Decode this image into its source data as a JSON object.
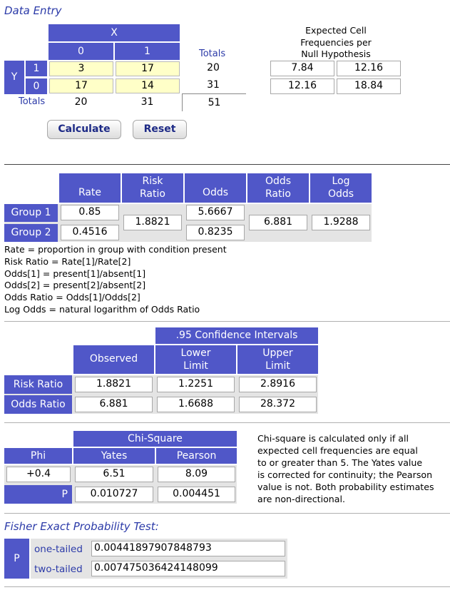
{
  "data_entry": {
    "title": "Data Entry",
    "x_header": "X",
    "x_col_0": "0",
    "x_col_1": "1",
    "totals_col_label": "Totals",
    "y_label": "Y",
    "y_row_1": "1",
    "y_row_0": "0",
    "totals_row_label": "Totals",
    "cells": {
      "r1c0": "3",
      "r1c1": "17",
      "r0c0": "17",
      "r0c1": "14"
    },
    "row_totals": {
      "r1": "20",
      "r0": "31"
    },
    "col_totals": {
      "c0": "20",
      "c1": "31"
    },
    "grand_total": "51",
    "expected_title_1": "Expected Cell",
    "expected_title_2": "Frequencies per",
    "expected_title_3": "Null Hypothesis",
    "expected": {
      "r1c0": "7.84",
      "r1c1": "12.16",
      "r0c0": "12.16",
      "r0c1": "18.84"
    },
    "calculate_label": "Calculate",
    "reset_label": "Reset"
  },
  "rates": {
    "col_rate": "Rate",
    "col_risk_1": "Risk",
    "col_risk_2": "Ratio",
    "col_odds": "Odds",
    "col_oddsratio_1": "Odds",
    "col_oddsratio_2": "Ratio",
    "col_log_1": "Log",
    "col_log_2": "Odds",
    "group1_label": "Group 1",
    "group2_label": "Group 2",
    "group1_rate": "0.85",
    "group2_rate": "0.4516",
    "risk_ratio": "1.8821",
    "group1_odds": "5.6667",
    "group2_odds": "0.8235",
    "odds_ratio": "6.881",
    "log_odds": "1.9288",
    "notes": [
      "Rate = proportion in group with condition present",
      "Risk Ratio = Rate[1]/Rate[2]",
      "Odds[1] = present[1]/absent[1]",
      "Odds[2] = present[2]/absent[2]",
      "Odds Ratio = Odds[1]/Odds[2]",
      "Log Odds = natural logarithm of Odds Ratio"
    ]
  },
  "ci": {
    "header": ".95 Confidence Intervals",
    "col_observed": "Observed",
    "col_lower_1": "Lower",
    "col_lower_2": "Limit",
    "col_upper_1": "Upper",
    "col_upper_2": "Limit",
    "row_risk": "Risk Ratio",
    "row_odds": "Odds Ratio",
    "risk_observed": "1.8821",
    "risk_lower": "1.2251",
    "risk_upper": "2.8916",
    "odds_observed": "6.881",
    "odds_lower": "1.6688",
    "odds_upper": "28.372"
  },
  "chi": {
    "header": "Chi-Square",
    "col_phi": "Phi",
    "col_yates": "Yates",
    "col_pearson": "Pearson",
    "phi": "+0.4",
    "yates": "6.51",
    "pearson": "8.09",
    "p_label": "P",
    "p_yates": "0.010727",
    "p_pearson": "0.004451",
    "note_lines": [
      "Chi-square is calculated only if all",
      "expected cell frequencies are equal",
      "to or greater than 5. The Yates value",
      "is corrected for continuity; the Pearson",
      "value is not. Both probability estimates",
      "are non-directional."
    ]
  },
  "fisher": {
    "title": "Fisher Exact Probability Test:",
    "p_label": "P",
    "one_tailed_label": "one-tailed",
    "two_tailed_label": "two-tailed",
    "one_tailed": "0.00441897907848793",
    "two_tailed": "0.007475036424148099"
  },
  "colors": {
    "header_blue": "#5057c8",
    "input_yellow": "#ffffc8",
    "title_blue": "#2b3aa8"
  }
}
